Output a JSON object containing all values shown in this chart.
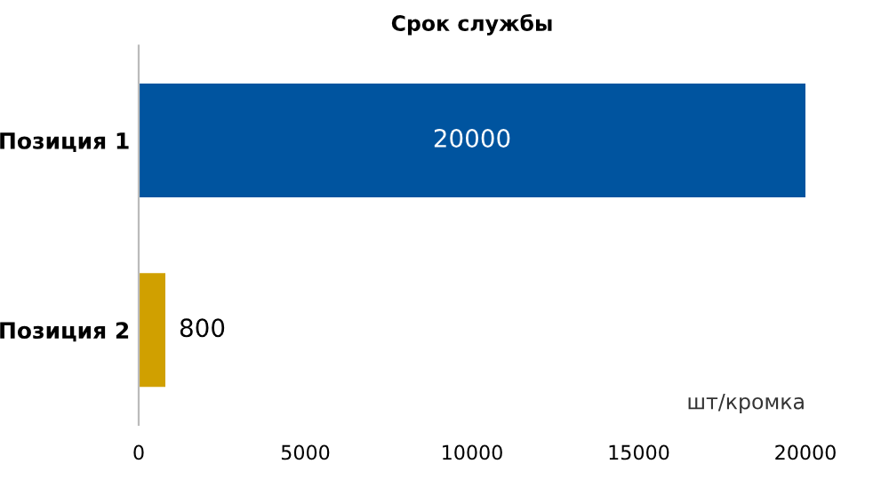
{
  "chart_data": {
    "type": "bar",
    "orientation": "horizontal",
    "title": "Срок службы",
    "xlabel": "шт/кромка",
    "categories": [
      "Позиция 1",
      "Позиция 2"
    ],
    "values": [
      20000,
      800
    ],
    "colors": [
      "#00549f",
      "#d0a000"
    ],
    "xlim": [
      0,
      20000
    ],
    "xticks": [
      0,
      5000,
      10000,
      15000,
      20000
    ],
    "grid": false,
    "legend": false,
    "data_labels": true
  }
}
